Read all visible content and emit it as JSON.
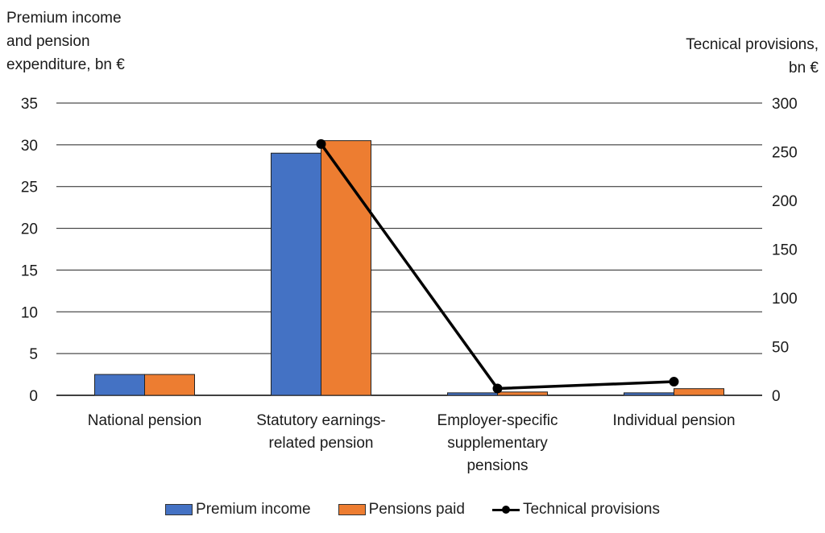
{
  "chart_data": {
    "type": "bar",
    "categories": [
      [
        "National pension"
      ],
      [
        "Statutory earnings-",
        "related pension"
      ],
      [
        "Employer-specific",
        "supplementary",
        "pensions"
      ],
      [
        "Individual pension"
      ]
    ],
    "series": [
      {
        "name": "Premium income",
        "type": "bar",
        "axis": "left",
        "color": "#4472C4",
        "values": [
          2.5,
          29.0,
          0.3,
          0.3
        ]
      },
      {
        "name": "Pensions paid",
        "type": "bar",
        "axis": "left",
        "color": "#ED7D31",
        "values": [
          2.5,
          30.5,
          0.4,
          0.8
        ]
      },
      {
        "name": "Technical provisions",
        "type": "line",
        "axis": "right",
        "color": "#000000",
        "values": [
          null,
          258,
          7,
          14
        ]
      }
    ],
    "ylabel_left": [
      "Premium income",
      "and pension",
      "expenditure, bn €"
    ],
    "ylabel_right": [
      "Tecnical provisions,",
      "bn €"
    ],
    "ylim_left": [
      0,
      35
    ],
    "yticks_left": [
      0,
      5,
      10,
      15,
      20,
      25,
      30,
      35
    ],
    "ylim_right": [
      0,
      300
    ],
    "yticks_right": [
      0,
      50,
      100,
      150,
      200,
      250,
      300
    ],
    "grid": true,
    "legend_position": "bottom"
  }
}
